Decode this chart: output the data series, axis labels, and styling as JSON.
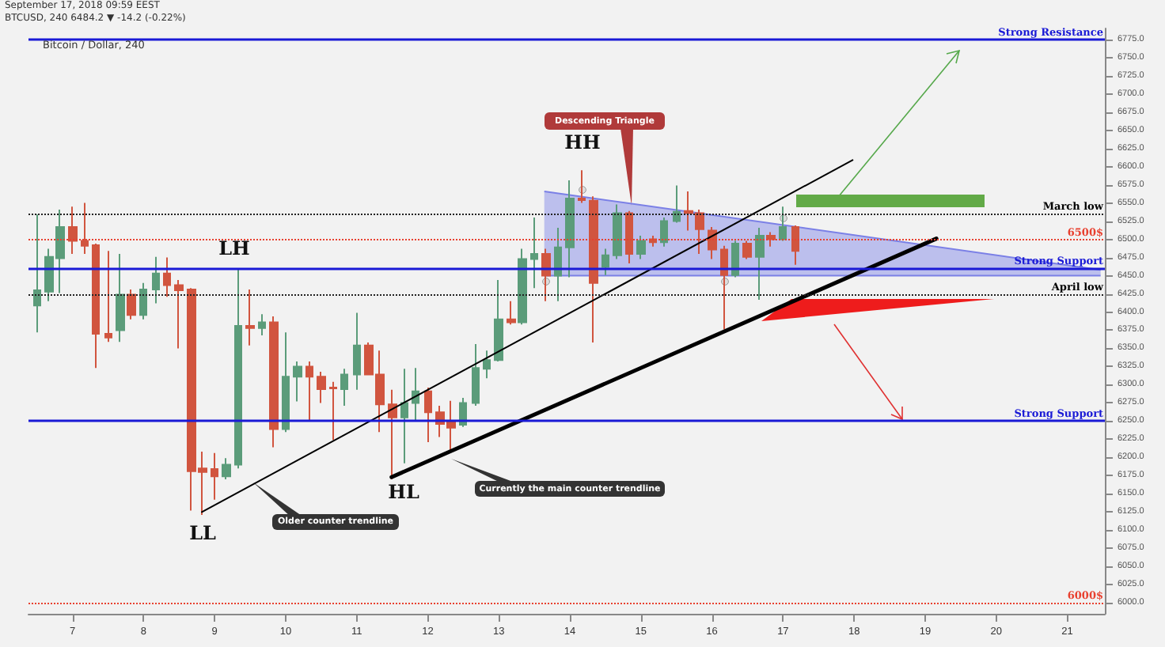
{
  "chart_data": {
    "type": "candlestick",
    "title": "Bitcoin / Dollar, 240",
    "subtitle": "September 17, 2018 09:59 EEST",
    "annotations": [
      "BTCUSD, 240 6484.2 ▼ -14.2 (-0.22%)",
      "HH",
      "LH",
      "LL",
      "HL",
      "Descending Triangle",
      "Older counter trendline",
      "Currently the main counter trendline"
    ],
    "x": [
      6.5,
      6.67,
      6.83,
      7,
      7.17,
      7.33,
      7.5,
      7.67,
      7.83,
      8,
      8.17,
      8.33,
      8.5,
      8.67,
      8.83,
      9,
      9.17,
      9.33,
      9.5,
      9.67,
      9.83,
      10,
      10.17,
      10.33,
      10.5,
      10.67,
      10.83,
      11,
      11.17,
      11.33,
      11.5,
      11.67,
      11.83,
      12,
      12.17,
      12.33,
      12.5,
      12.67,
      12.83,
      13,
      13.17,
      13.33,
      13.5,
      13.67,
      13.83,
      14,
      14.17,
      14.33,
      14.5,
      14.67,
      14.83,
      15,
      15.17,
      15.33,
      15.5,
      15.67,
      15.83,
      16,
      16.17,
      16.33,
      16.5,
      16.67,
      16.83,
      17,
      17.17
    ],
    "ohlc": [
      [
        6409,
        6534,
        6372,
        6430
      ],
      [
        6428,
        6487,
        6415,
        6476
      ],
      [
        6474,
        6541,
        6426,
        6517
      ],
      [
        6517,
        6545,
        6480,
        6498
      ],
      [
        6498,
        6550,
        6480,
        6491
      ],
      [
        6492,
        6494,
        6323,
        6370
      ],
      [
        6370,
        6484,
        6359,
        6365
      ],
      [
        6375,
        6480,
        6359,
        6424
      ],
      [
        6424,
        6431,
        6390,
        6396
      ],
      [
        6396,
        6440,
        6390,
        6431
      ],
      [
        6431,
        6476,
        6412,
        6453
      ],
      [
        6453,
        6475,
        6421,
        6437
      ],
      [
        6437,
        6444,
        6350,
        6430
      ],
      [
        6431,
        6433,
        6127,
        6181
      ],
      [
        6185,
        6208,
        6121,
        6180
      ],
      [
        6184,
        6206,
        6142,
        6174
      ],
      [
        6174,
        6199,
        6170,
        6190
      ],
      [
        6190,
        6460,
        6185,
        6381
      ],
      [
        6381,
        6431,
        6354,
        6378
      ],
      [
        6378,
        6397,
        6368,
        6386
      ],
      [
        6386,
        6394,
        6214,
        6239
      ],
      [
        6239,
        6372,
        6235,
        6311
      ],
      [
        6311,
        6332,
        6277,
        6325
      ],
      [
        6325,
        6332,
        6251,
        6311
      ],
      [
        6311,
        6318,
        6275,
        6294
      ],
      [
        6296,
        6304,
        6224,
        6295
      ],
      [
        6294,
        6322,
        6271,
        6314
      ],
      [
        6314,
        6399,
        6293,
        6354
      ],
      [
        6354,
        6358,
        6313,
        6314
      ],
      [
        6314,
        6347,
        6235,
        6273
      ],
      [
        6273,
        6293,
        6170,
        6255
      ],
      [
        6255,
        6322,
        6192,
        6275
      ],
      [
        6275,
        6323,
        6250,
        6291
      ],
      [
        6291,
        6296,
        6221,
        6262
      ],
      [
        6262,
        6271,
        6228,
        6246
      ],
      [
        6250,
        6278,
        6210,
        6241
      ],
      [
        6245,
        6282,
        6242,
        6275
      ],
      [
        6275,
        6356,
        6271,
        6323
      ],
      [
        6322,
        6347,
        6309,
        6334
      ],
      [
        6334,
        6444,
        6332,
        6390
      ],
      [
        6390,
        6415,
        6383,
        6386
      ],
      [
        6386,
        6487,
        6383,
        6473
      ],
      [
        6473,
        6530,
        6433,
        6480
      ],
      [
        6480,
        6487,
        6415,
        6450
      ],
      [
        6450,
        6516,
        6415,
        6489
      ],
      [
        6489,
        6581,
        6448,
        6556
      ],
      [
        6556,
        6595,
        6550,
        6554
      ],
      [
        6553,
        6559,
        6358,
        6440
      ],
      [
        6462,
        6487,
        6451,
        6478
      ],
      [
        6478,
        6548,
        6473,
        6536
      ],
      [
        6536,
        6539,
        6467,
        6480
      ],
      [
        6480,
        6505,
        6473,
        6498
      ],
      [
        6500,
        6505,
        6490,
        6496
      ],
      [
        6496,
        6530,
        6490,
        6525
      ],
      [
        6525,
        6574,
        6523,
        6538
      ],
      [
        6539,
        6566,
        6512,
        6536
      ],
      [
        6536,
        6541,
        6480,
        6514
      ],
      [
        6512,
        6517,
        6473,
        6486
      ],
      [
        6486,
        6491,
        6376,
        6451
      ],
      [
        6451,
        6498,
        6448,
        6494
      ],
      [
        6494,
        6498,
        6473,
        6476
      ],
      [
        6476,
        6516,
        6417,
        6505
      ],
      [
        6505,
        6510,
        6490,
        6500
      ],
      [
        6500,
        6545,
        6498,
        6517
      ],
      [
        6517,
        6519,
        6465,
        6484
      ]
    ],
    "colors": [
      "#5b9c7a",
      "#5b9c7a",
      "#5b9c7a",
      "#d1553f",
      "#d1553f",
      "#d1553f",
      "#d1553f",
      "#5b9c7a",
      "#d1553f",
      "#5b9c7a",
      "#5b9c7a",
      "#d1553f",
      "#d1553f",
      "#d1553f",
      "#d1553f",
      "#d1553f",
      "#5b9c7a",
      "#5b9c7a",
      "#d1553f",
      "#5b9c7a",
      "#d1553f",
      "#5b9c7a",
      "#5b9c7a",
      "#d1553f",
      "#d1553f",
      "#d1553f",
      "#5b9c7a",
      "#5b9c7a",
      "#d1553f",
      "#d1553f",
      "#d1553f",
      "#5b9c7a",
      "#5b9c7a",
      "#d1553f",
      "#d1553f",
      "#d1553f",
      "#5b9c7a",
      "#5b9c7a",
      "#5b9c7a",
      "#5b9c7a",
      "#d1553f",
      "#5b9c7a",
      "#5b9c7a",
      "#d1553f",
      "#5b9c7a",
      "#5b9c7a",
      "#d1553f",
      "#d1553f",
      "#5b9c7a",
      "#5b9c7a",
      "#d1553f",
      "#5b9c7a",
      "#d1553f",
      "#5b9c7a",
      "#5b9c7a",
      "#d1553f",
      "#d1553f",
      "#d1553f",
      "#d1553f",
      "#5b9c7a",
      "#d1553f",
      "#5b9c7a",
      "#d1553f",
      "#5b9c7a",
      "#d1553f"
    ],
    "series": [
      {
        "type": "line",
        "x": [
          8.82,
          17.98
        ],
        "values": [
          6125,
          6609
        ],
        "color": "#000000"
      },
      {
        "type": "line",
        "x": [
          11.49,
          19.16
        ],
        "values": [
          6173,
          6501
        ],
        "color": "#000000"
      },
      {
        "type": "line",
        "x": [
          13.64,
          21.47
        ],
        "values": [
          6566,
          6458
        ],
        "lower": [
          6450,
          6450
        ],
        "upper": [
          6566,
          6458
        ],
        "color": "#7b80e6"
      }
    ],
    "ref_lines": [
      {
        "axis": "y",
        "value": 6775,
        "label": "Strong Resistance",
        "color": "#1a1ad6",
        "line_style": "solid"
      },
      {
        "axis": "y",
        "value": 6535,
        "label": "March low",
        "color": "#222222",
        "line_style": "dotted"
      },
      {
        "axis": "y",
        "value": 6500,
        "label": "6500$",
        "color": "#e8402f",
        "line_style": "dotted"
      },
      {
        "axis": "y",
        "value": 6460,
        "label": "Strong Support",
        "color": "#1a1ad6",
        "line_style": "solid"
      },
      {
        "axis": "y",
        "value": 6425,
        "label": "April low",
        "color": "#222222",
        "line_style": "dotted"
      },
      {
        "axis": "y",
        "value": 6250,
        "label": "Strong Support",
        "color": "#1a1ad6",
        "line_style": "solid"
      },
      {
        "axis": "y",
        "value": 6000,
        "label": "6000$",
        "color": "#e8402f",
        "line_style": "dotted"
      }
    ],
    "xlim": [
      6.38,
      21.53
    ],
    "xticks": [
      7,
      8,
      9,
      10,
      11,
      12,
      13,
      14,
      15,
      16,
      17,
      18,
      19,
      20,
      21
    ],
    "ylim": [
      5985,
      6790
    ],
    "yticks": [
      {
        "value": 6000,
        "label": "6000.0"
      },
      {
        "value": 6025,
        "label": "6025.0"
      },
      {
        "value": 6050,
        "label": "6050.0"
      },
      {
        "value": 6075,
        "label": "6075.0"
      },
      {
        "value": 6100,
        "label": "6100.0"
      },
      {
        "value": 6125,
        "label": "6125.0"
      },
      {
        "value": 6150,
        "label": "6150.0"
      },
      {
        "value": 6175,
        "label": "6175.0"
      },
      {
        "value": 6200,
        "label": "6200.0"
      },
      {
        "value": 6225,
        "label": "6225.0"
      },
      {
        "value": 6250,
        "label": "6250.0"
      },
      {
        "value": 6275,
        "label": "6275.0"
      },
      {
        "value": 6300,
        "label": "6300.0"
      },
      {
        "value": 6325,
        "label": "6325.0"
      },
      {
        "value": 6350,
        "label": "6350.0"
      },
      {
        "value": 6375,
        "label": "6375.0"
      },
      {
        "value": 6400,
        "label": "6400.0"
      },
      {
        "value": 6425,
        "label": "6425.0"
      },
      {
        "value": 6450,
        "label": "6450.0"
      },
      {
        "value": 6475,
        "label": "6475.0"
      },
      {
        "value": 6500,
        "label": "6500.0"
      },
      {
        "value": 6525,
        "label": "6525.0"
      },
      {
        "value": 6550,
        "label": "6550.0"
      },
      {
        "value": 6575,
        "label": "6575.0"
      },
      {
        "value": 6600,
        "label": "6600.0"
      },
      {
        "value": 6625,
        "label": "6625.0"
      },
      {
        "value": 6650,
        "label": "6650.0"
      },
      {
        "value": 6675,
        "label": "6675.0"
      },
      {
        "value": 6700,
        "label": "6700.0"
      },
      {
        "value": 6725,
        "label": "6725.0"
      },
      {
        "value": 6750,
        "label": "6750.0"
      },
      {
        "value": 6775,
        "label": "6775.0"
      }
    ],
    "grid": false
  }
}
